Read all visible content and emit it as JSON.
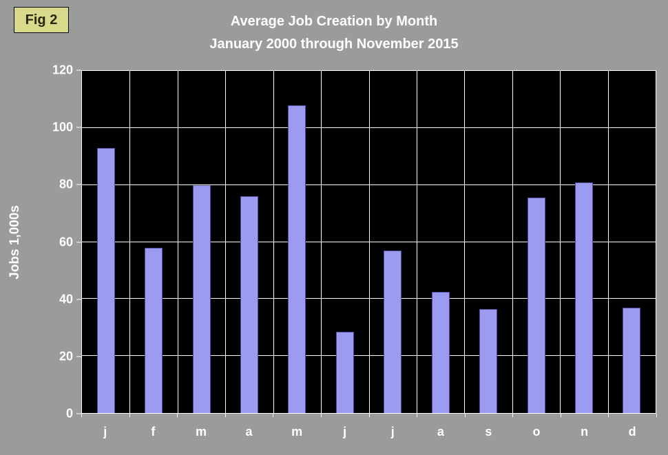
{
  "fig_label": "Fig 2",
  "chart_data": {
    "type": "bar",
    "title": "Average Job Creation by Month",
    "subtitle": "January 2000 through November 2015",
    "ylabel": "Jobs 1,000s",
    "xlabel": "",
    "categories": [
      "j",
      "f",
      "m",
      "a",
      "m",
      "j",
      "j",
      "a",
      "s",
      "o",
      "n",
      "d"
    ],
    "values": [
      93,
      58,
      80,
      76,
      108,
      28.5,
      57,
      42.5,
      36.5,
      75.5,
      81,
      37
    ],
    "ylim": [
      0,
      120
    ],
    "yticks": [
      0,
      20,
      40,
      60,
      80,
      100,
      120
    ],
    "grid": true,
    "legend": "none",
    "colors": {
      "background": "#9b9b9b",
      "plot_background": "#000000",
      "gridline": "#ffffff",
      "bar_fill": "#9b9bef",
      "bar_border": "#4d4da0",
      "text": "#ffffff",
      "fig_label_bg": "#d9d98c",
      "fig_label_border": "#000000",
      "fig_label_text": "#26260e"
    }
  }
}
